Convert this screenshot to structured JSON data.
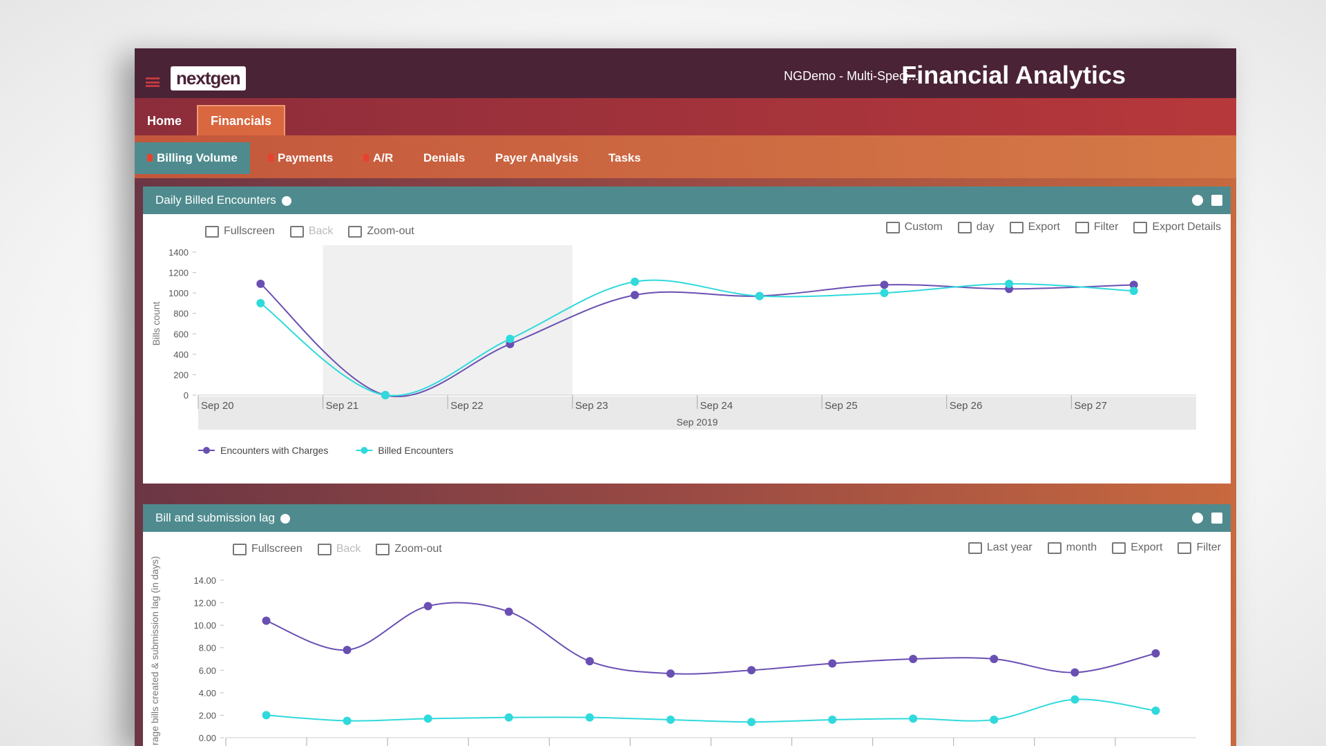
{
  "header": {
    "logo": "nextgen",
    "org": "NGDemo - Multi-Speci...",
    "title": "Financial Analytics"
  },
  "nav": {
    "tabs": [
      "Home",
      "Financials"
    ],
    "subtabs": [
      "Billing Volume",
      "Payments",
      "A/R",
      "Denials",
      "Payer Analysis",
      "Tasks"
    ]
  },
  "panels": [
    {
      "title": "Daily Billed Encounters",
      "tools_left": [
        "Fullscreen",
        "Back",
        "Zoom-out"
      ],
      "tools_right": [
        "Custom",
        "day",
        "Export",
        "Filter",
        "Export Details"
      ]
    },
    {
      "title": "Bill and submission lag",
      "tools_left": [
        "Fullscreen",
        "Back",
        "Zoom-out"
      ],
      "tools_right": [
        "Last year",
        "month",
        "Export",
        "Filter"
      ]
    }
  ],
  "chart_data": [
    {
      "type": "line",
      "x_label": "Sep 2019",
      "y_label": "Bills count",
      "categories": [
        "Sep 20",
        "Sep 21",
        "Sep 22",
        "Sep 23",
        "Sep 24",
        "Sep 25",
        "Sep 26",
        "Sep 27"
      ],
      "series": [
        {
          "name": "Encounters with Charges",
          "color": "#6a4fb3",
          "values": [
            1090,
            0,
            500,
            980,
            970,
            1080,
            1040,
            1080
          ]
        },
        {
          "name": "Billed Encounters",
          "color": "#2fd9dc",
          "values": [
            900,
            0,
            550,
            1110,
            970,
            1000,
            1090,
            1020
          ]
        }
      ],
      "ylim": [
        0,
        1400
      ],
      "yticks": [
        0,
        200,
        400,
        600,
        800,
        1000,
        1200,
        1400
      ],
      "legend": "bottom-left"
    },
    {
      "type": "line",
      "y_label": "Average bills created & submission lag (in days)",
      "categories": [
        null,
        null,
        null,
        null,
        null,
        null,
        null,
        null,
        null,
        null,
        null,
        null
      ],
      "series": [
        {
          "color": "#6a4fb3",
          "values": [
            10.4,
            7.8,
            11.7,
            11.2,
            6.8,
            5.7,
            6.0,
            6.6,
            7.0,
            7.0,
            5.8,
            7.5
          ]
        },
        {
          "color": "#2fd9dc",
          "values": [
            2.0,
            1.5,
            1.7,
            1.8,
            1.8,
            1.6,
            1.4,
            1.6,
            1.7,
            1.6,
            3.4,
            2.4
          ]
        }
      ],
      "ylim": [
        0,
        14
      ],
      "yticks": [
        {
          "value": 0,
          "label": "0.00"
        },
        {
          "value": 2,
          "label": "2.00"
        },
        {
          "value": 4,
          "label": "4.00"
        },
        {
          "value": 6,
          "label": "6.00"
        },
        {
          "value": 8,
          "label": "8.00"
        },
        {
          "value": 10,
          "label": "10.00"
        },
        {
          "value": 12,
          "label": "12.00"
        },
        {
          "value": 14,
          "label": "14.00"
        }
      ]
    }
  ]
}
